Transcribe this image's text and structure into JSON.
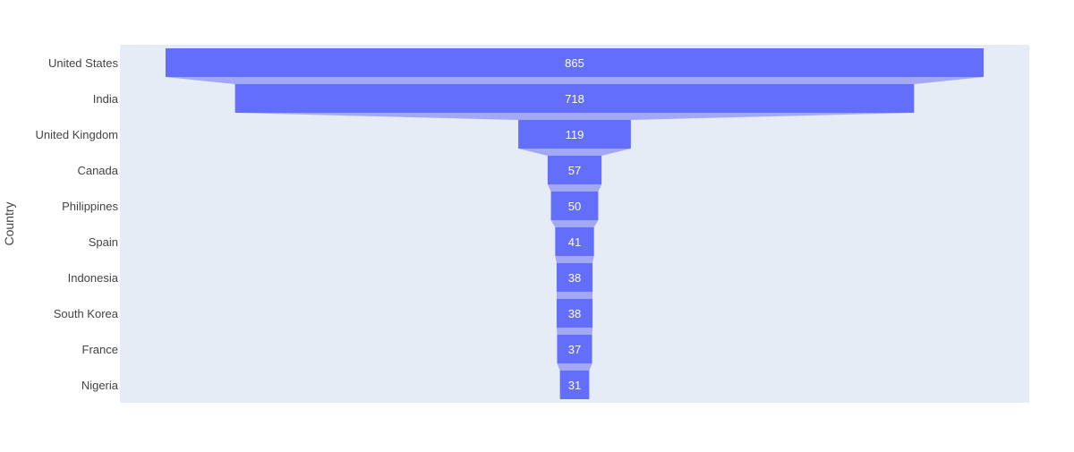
{
  "chart_data": {
    "type": "funnel",
    "title": "",
    "xlabel": "",
    "ylabel": "Country",
    "categories": [
      "United States",
      "India",
      "United Kingdom",
      "Canada",
      "Philippines",
      "Spain",
      "Indonesia",
      "South Korea",
      "France",
      "Nigeria"
    ],
    "values": [
      865,
      718,
      119,
      57,
      50,
      41,
      38,
      38,
      37,
      31
    ],
    "grid": false,
    "legend": "none"
  },
  "colors": {
    "bar": "#636efa",
    "connector": "#a3a8f5",
    "plot_background": "#e5ecf6",
    "axis_text": "#444444",
    "bar_text": "#ffffff"
  }
}
